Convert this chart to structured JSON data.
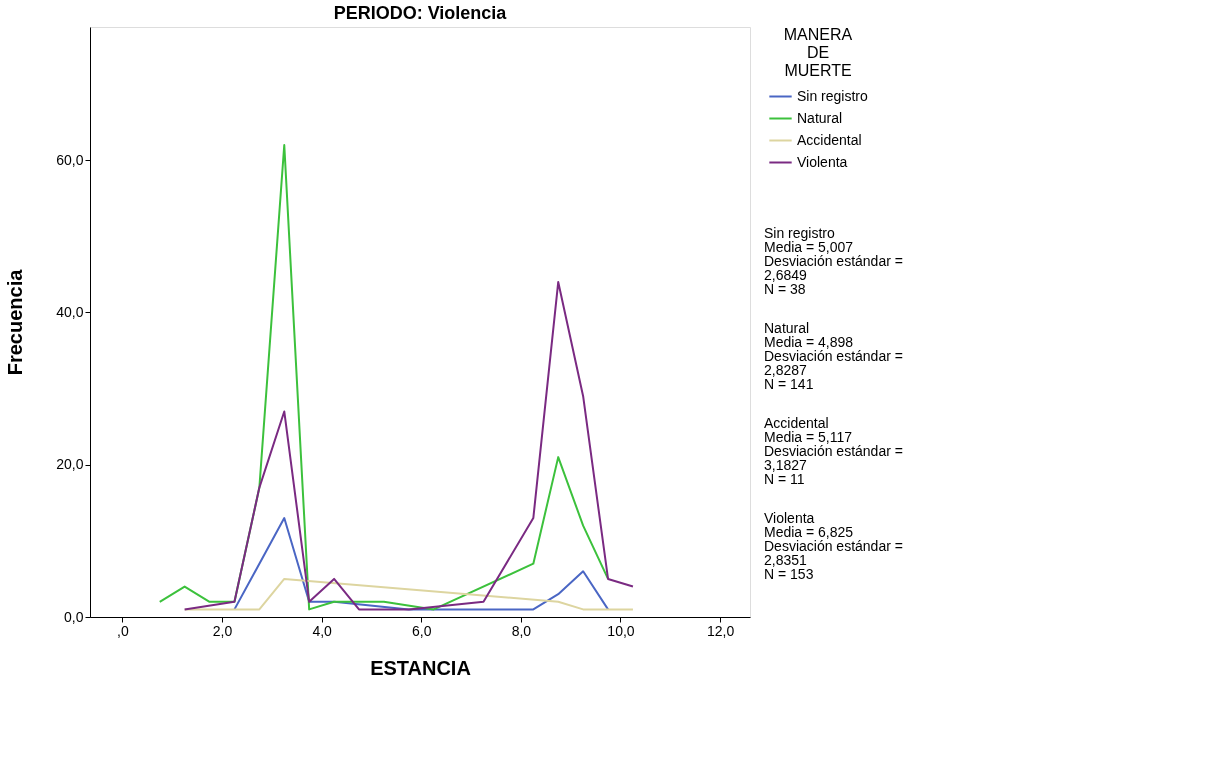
{
  "chart_data": {
    "type": "line",
    "title": "PERIODO: Violencia",
    "xlabel": "ESTANCIA",
    "ylabel": "Frecuencia",
    "legend_title": "MANERA\nDE\nMUERTE",
    "xlim": [
      -0.65,
      12.6
    ],
    "ylim": [
      0,
      77.5
    ],
    "xticks": [
      {
        "value": 0,
        "label": ",0"
      },
      {
        "value": 2,
        "label": "2,0"
      },
      {
        "value": 4,
        "label": "4,0"
      },
      {
        "value": 6,
        "label": "6,0"
      },
      {
        "value": 8,
        "label": "8,0"
      },
      {
        "value": 10,
        "label": "10,0"
      },
      {
        "value": 12,
        "label": "12,0"
      }
    ],
    "yticks": [
      {
        "value": 0,
        "label": "0,0"
      },
      {
        "value": 20,
        "label": "20,0"
      },
      {
        "value": 40,
        "label": "40,0"
      },
      {
        "value": 60,
        "label": "60,0"
      }
    ],
    "grid": false,
    "legend": "right",
    "marker": "none",
    "line_style": "solid",
    "series": [
      {
        "name": "Sin registro",
        "color": "#4a66c4",
        "x": [
          2.25,
          3.25,
          3.75,
          4.25,
          5.75,
          8.25,
          8.75,
          9.25,
          9.75
        ],
        "values": [
          1,
          13,
          2,
          2,
          1,
          1,
          3,
          6,
          1
        ]
      },
      {
        "name": "Natural",
        "color": "#3cc13c",
        "x": [
          0.75,
          1.25,
          1.75,
          2.25,
          2.75,
          3.25,
          3.75,
          4.25,
          5.25,
          6.25,
          8.25,
          8.75,
          9.25,
          9.75
        ],
        "values": [
          2,
          4,
          2,
          2,
          17,
          62,
          1,
          2,
          2,
          1,
          7,
          21,
          12,
          5
        ]
      },
      {
        "name": "Accidental",
        "color": "#ddd5a0",
        "x": [
          1.25,
          2.75,
          3.25,
          8.75,
          9.25,
          10.25
        ],
        "values": [
          1,
          1,
          5,
          2,
          1,
          1
        ]
      },
      {
        "name": "Violenta",
        "color": "#7a2a82",
        "x": [
          1.25,
          2.25,
          2.75,
          3.25,
          3.75,
          4.25,
          4.75,
          5.75,
          7.25,
          8.25,
          8.75,
          9.25,
          9.75,
          10.25
        ],
        "values": [
          1,
          2,
          17,
          27,
          2,
          5,
          1,
          1,
          2,
          13,
          44,
          29,
          5,
          4
        ]
      }
    ],
    "annotations": [
      "Sin registro\nMedia = 5,007\nDesviación estándar =\n2,6849\nN = 38",
      "Natural\nMedia = 4,898\nDesviación estándar =\n2,8287\nN = 141",
      "Accidental\nMedia = 5,117\nDesviación estándar =\n3,1827\nN = 11",
      "Violenta\nMedia = 6,825\nDesviación estándar =\n2,8351\nN = 153"
    ]
  }
}
